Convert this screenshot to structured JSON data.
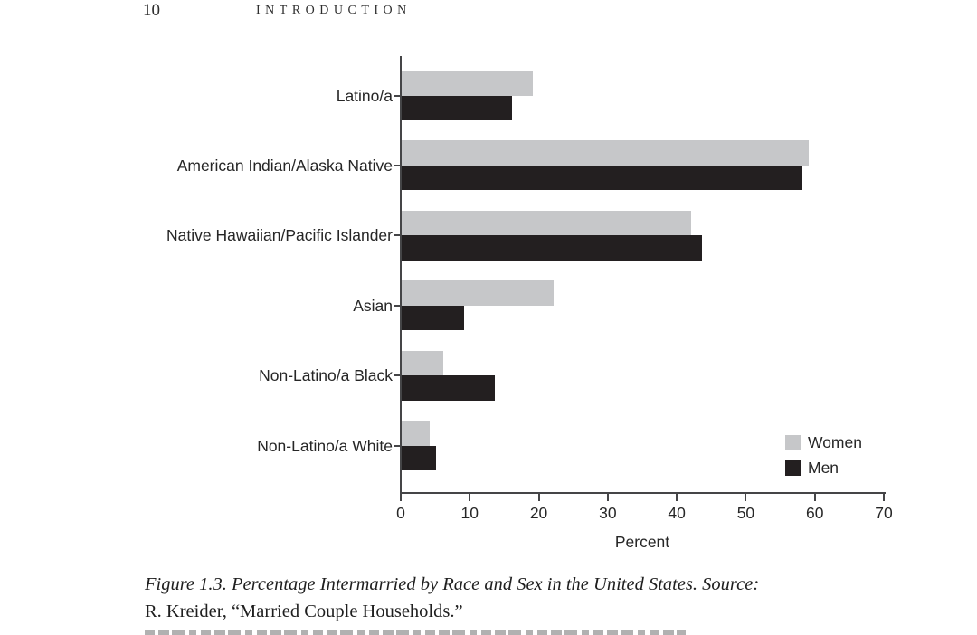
{
  "page": {
    "page_number": "10",
    "running_head": "INTRODUCTION"
  },
  "chart_data": {
    "type": "bar",
    "orientation": "horizontal",
    "title": "",
    "categories": [
      "Latino/a",
      "American Indian/Alaska Native",
      "Native Hawaiian/Pacific Islander",
      "Asian",
      "Non-Latino/a Black",
      "Non-Latino/a White"
    ],
    "series": [
      {
        "name": "Women",
        "color": "#c6c7c9",
        "values": [
          19,
          59,
          42,
          22,
          6,
          4
        ]
      },
      {
        "name": "Men",
        "color": "#231f20",
        "values": [
          16,
          58,
          43.5,
          9,
          13.5,
          5
        ]
      }
    ],
    "xlabel": "Percent",
    "xlim": [
      0,
      70
    ],
    "xticks": [
      0,
      10,
      20,
      30,
      40,
      50,
      60,
      70
    ],
    "grid": false,
    "legend_position": "inside-bottom-right"
  },
  "caption": {
    "line1": "Figure 1.3.  Percentage Intermarried by Race and Sex in the United States. Source:",
    "line2": "R. Kreider, “Married Couple Households.”"
  }
}
